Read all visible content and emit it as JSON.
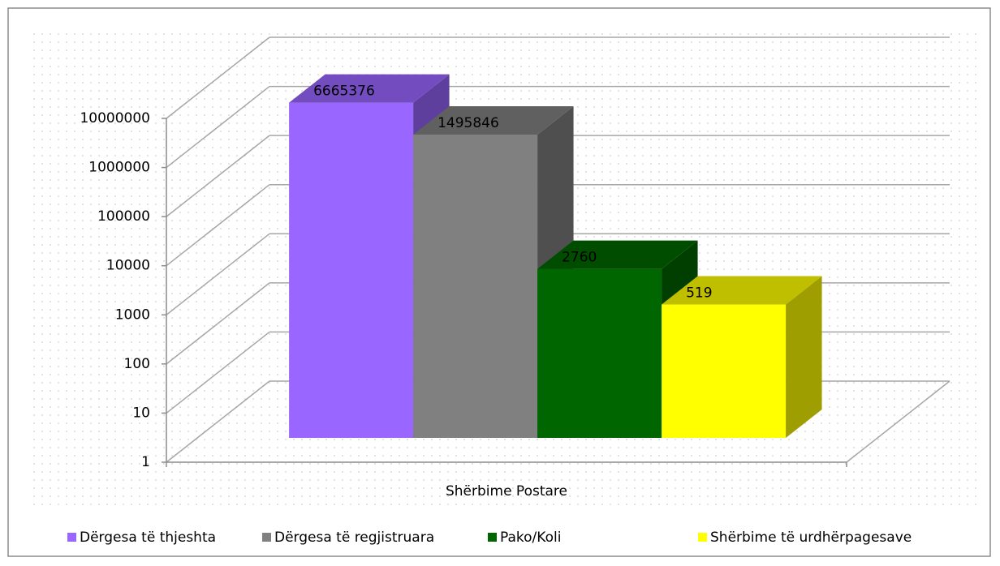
{
  "chart_data": {
    "type": "bar3d",
    "categories": [
      "Shërbime Postare"
    ],
    "series": [
      {
        "name": "Dërgesa të thjeshta",
        "color": "#9966ff",
        "values": [
          6665376
        ]
      },
      {
        "name": "Dërgesa të regjistruara",
        "color": "#808080",
        "values": [
          1495846
        ]
      },
      {
        "name": "Pako/Koli",
        "color": "#006600",
        "values": [
          2760
        ]
      },
      {
        "name": "Shërbime të urdhërpagesave",
        "color": "#ffff00",
        "values": [
          519
        ]
      }
    ],
    "log_scale": true,
    "ylim": [
      1,
      10000000
    ],
    "yticks": [
      1,
      10,
      100,
      1000,
      10000,
      100000,
      1000000,
      10000000
    ],
    "grid": true,
    "legend": "bottom"
  }
}
